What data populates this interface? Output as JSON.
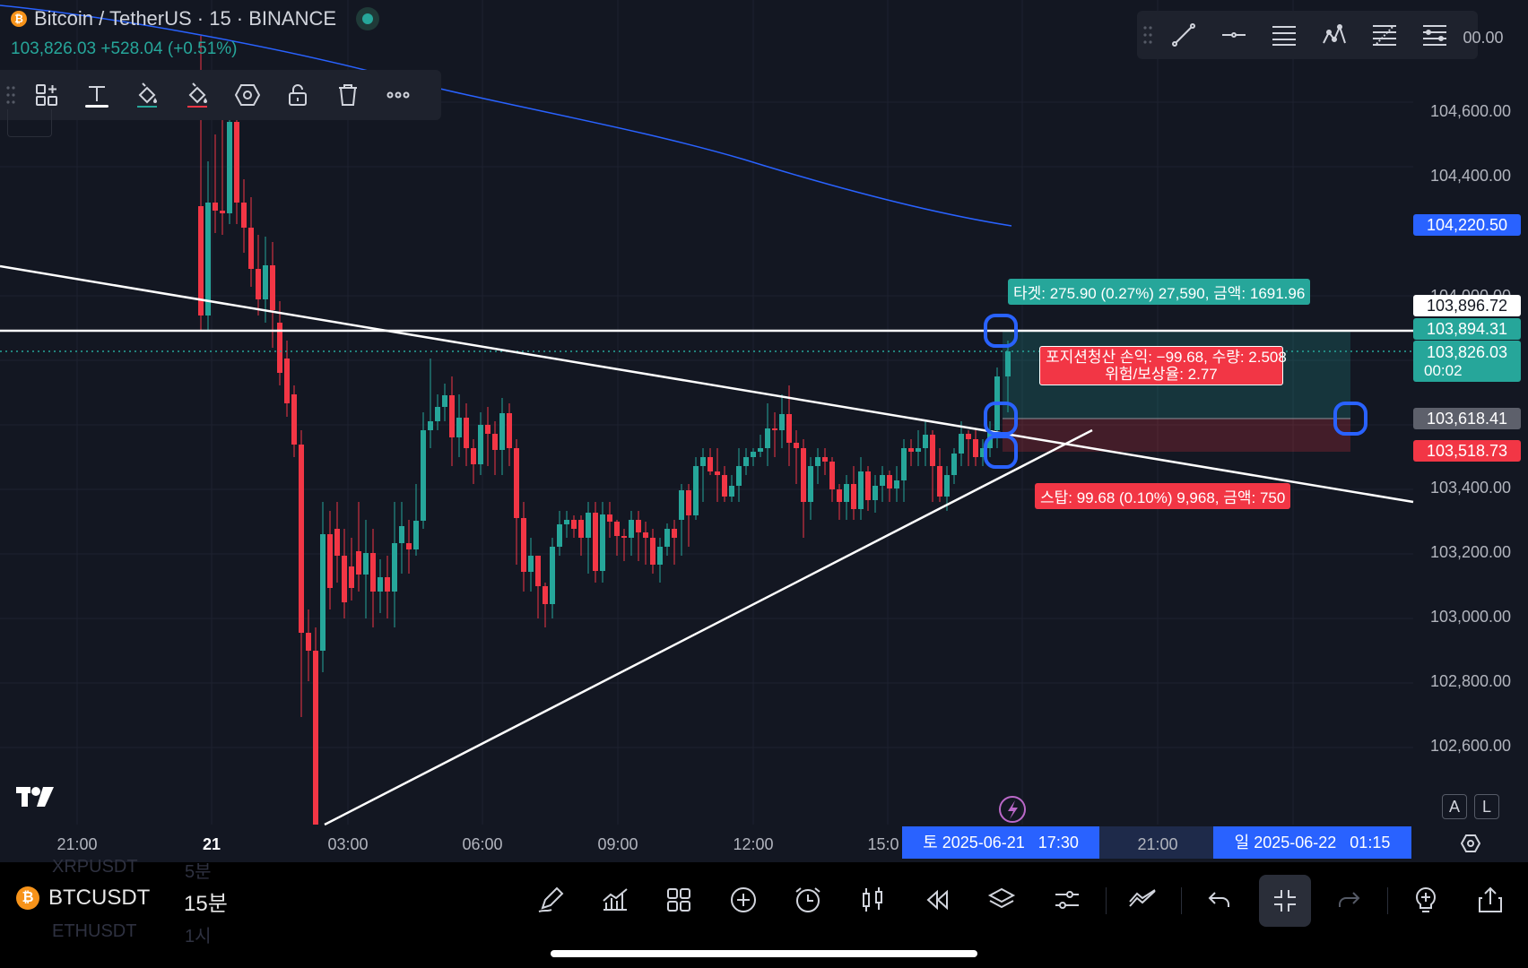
{
  "header": {
    "symbol_icon": "bitcoin-icon",
    "title": "Bitcoin / TetherUS · 15 · BINANCE",
    "price": "103,826.03",
    "change": "+528.04 (+0.51%)"
  },
  "price_axis": {
    "labels": [
      "104,600.00",
      "104,400.00",
      "104,000.00",
      "103,400.00",
      "103,200.00",
      "103,000.00",
      "102,800.00",
      "102,600.00"
    ],
    "partial_top": "00.00"
  },
  "price_tags": {
    "ma": "104,220.50",
    "hline": "103,896.72",
    "target": "103,894.31",
    "current": "103,826.03",
    "countdown": "00:02",
    "entry": "103,618.41",
    "stop": "103,518.73"
  },
  "time_axis": {
    "labels": [
      "21:00",
      "21",
      "03:00",
      "06:00",
      "09:00",
      "12:00",
      "15:0",
      "21:00"
    ],
    "sel_start": "토 2025-06-21   17:30",
    "sel_end": "일 2025-06-22   01:15"
  },
  "position": {
    "target_label": "타겟: 275.90 (0.27%) 27,590, 금액: 1691.96",
    "close_label": "포지션청산 손익: −99.68, 수량: 2.508",
    "rr_label": "위험/보상율: 2.77",
    "stop_label": "스탑: 99.68 (0.10%) 9,968, 금액: 750"
  },
  "colors": {
    "bg": "#131722",
    "up": "#26a69a",
    "down": "#f23645",
    "ma": "#2962ff",
    "handle": "#2962ff"
  },
  "chart_controls": {
    "auto": "A",
    "log": "L"
  },
  "bottom": {
    "symbol": "BTCUSDT",
    "interval": "15분",
    "ghost_top_symbol": "XRPUSDT",
    "ghost_top_interval": "5분",
    "ghost_bottom_symbol": "ETHUSDT",
    "ghost_bottom_interval": "1시"
  }
}
